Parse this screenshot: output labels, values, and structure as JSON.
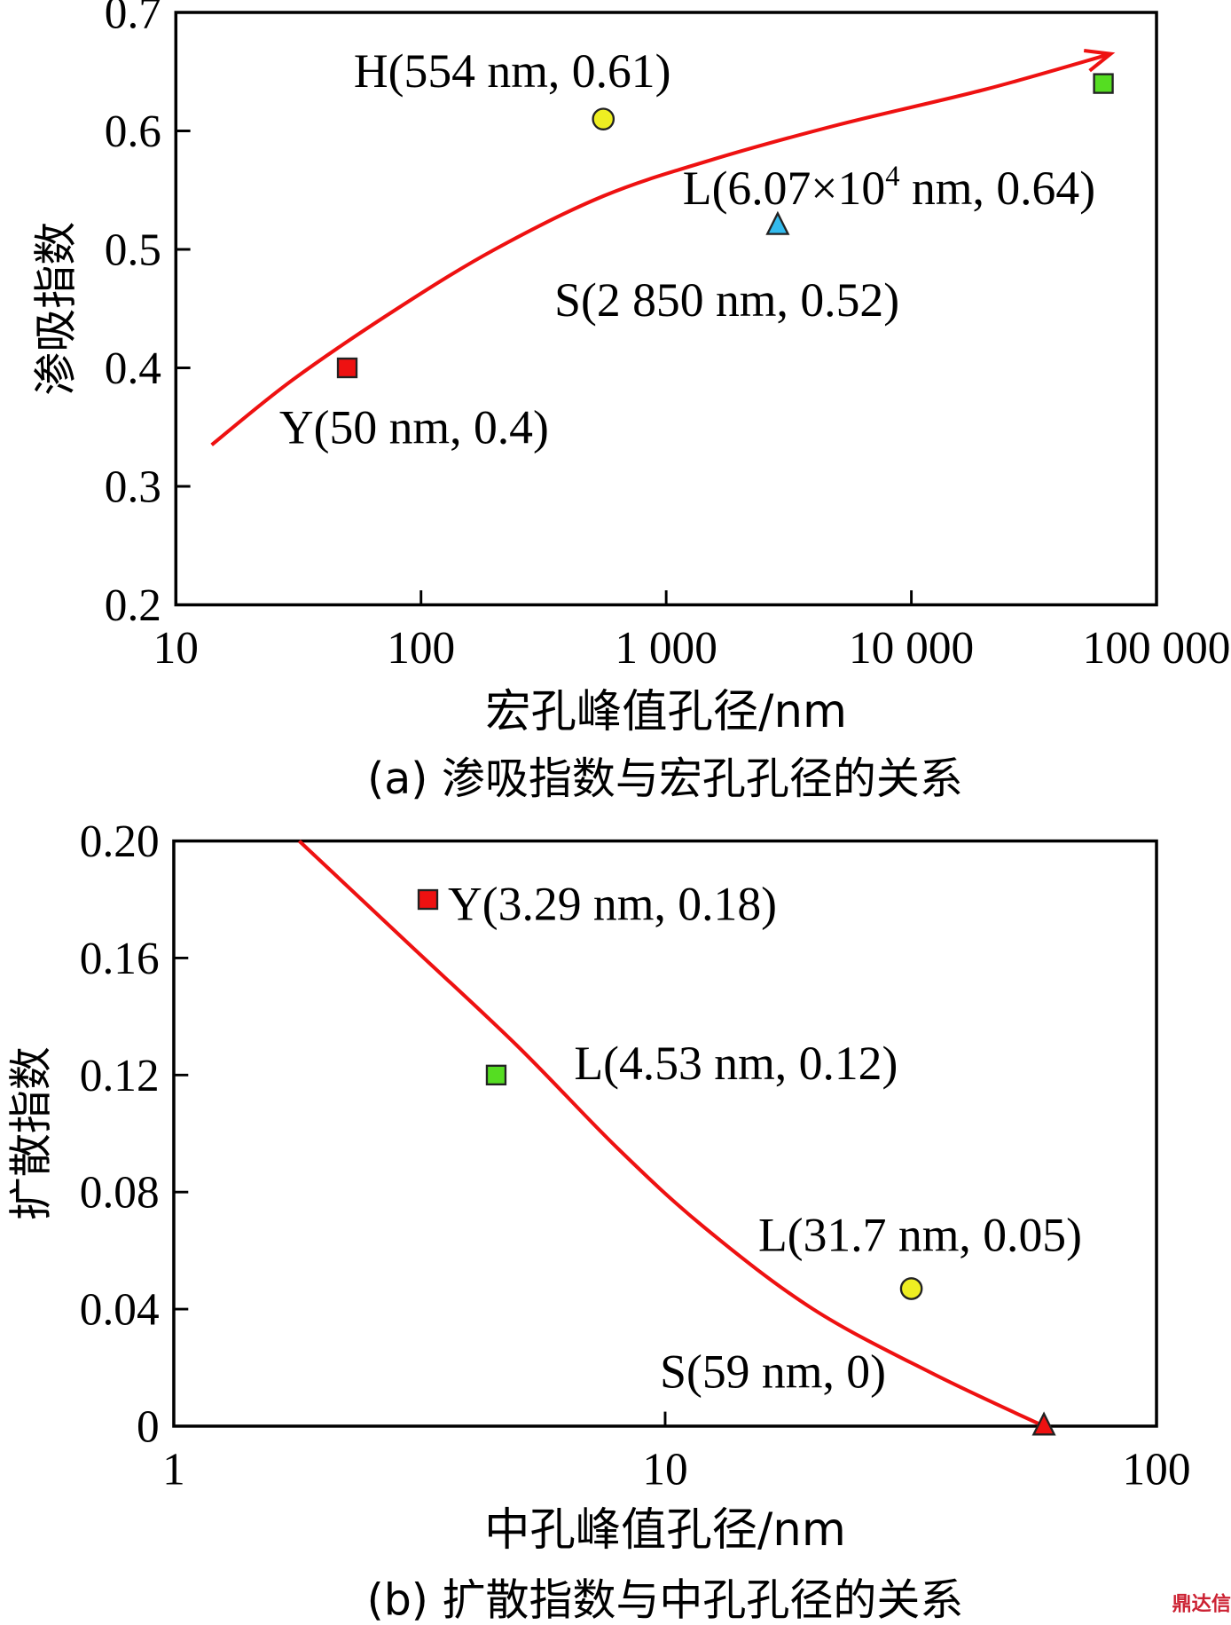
{
  "chart_data": [
    {
      "type": "scatter",
      "id": "a",
      "caption": "(a) 渗吸指数与宏孔孔径的关系",
      "xlabel": "宏孔峰值孔径/nm",
      "ylabel": "渗吸指数",
      "xscale": "log",
      "xlim": [
        10,
        100000
      ],
      "ylim": [
        0.2,
        0.7
      ],
      "xticks": [
        10,
        100,
        1000,
        10000,
        100000
      ],
      "xtick_labels": [
        "10",
        "100",
        "1 000",
        "10 000",
        "100 000"
      ],
      "yticks": [
        0.2,
        0.3,
        0.4,
        0.5,
        0.6,
        0.7
      ],
      "ytick_labels": [
        "0.2",
        "0.3",
        "0.4",
        "0.5",
        "0.6",
        "0.7"
      ],
      "points": [
        {
          "label": "Y(50 nm, 0.4)",
          "x": 50,
          "y": 0.4,
          "marker": "square",
          "color": "#ee1111"
        },
        {
          "label": "H(554 nm, 0.61)",
          "x": 554,
          "y": 0.61,
          "marker": "circle",
          "color": "#eeee22"
        },
        {
          "label": "S(2 850 nm, 0.52)",
          "x": 2850,
          "y": 0.52,
          "marker": "triangle",
          "color": "#33bbee"
        },
        {
          "label_main": "L(6.07×10",
          "label_sup": "4",
          "label_tail": " nm, 0.64)",
          "x": 60700,
          "y": 0.64,
          "marker": "square",
          "color": "#55dd22"
        }
      ],
      "trend": {
        "color": "#ee1111",
        "arrow": true,
        "x": [
          14,
          30,
          80,
          200,
          554,
          1500,
          5000,
          20000,
          65000
        ],
        "y": [
          0.335,
          0.39,
          0.45,
          0.5,
          0.545,
          0.575,
          0.605,
          0.635,
          0.665
        ]
      }
    },
    {
      "type": "scatter",
      "id": "b",
      "caption": "(b) 扩散指数与中孔孔径的关系",
      "xlabel": "中孔峰值孔径/nm",
      "ylabel": "扩散指数",
      "xscale": "log",
      "xlim": [
        1,
        100
      ],
      "ylim": [
        0,
        0.2
      ],
      "xticks": [
        1,
        10,
        100
      ],
      "xtick_labels": [
        "1",
        "10",
        "100"
      ],
      "yticks": [
        0,
        0.04,
        0.08,
        0.12,
        0.16,
        0.2
      ],
      "ytick_labels": [
        "0",
        "0.04",
        "0.08",
        "0.12",
        "0.16",
        "0.20"
      ],
      "points": [
        {
          "label": "Y(3.29 nm, 0.18)",
          "x": 3.29,
          "y": 0.18,
          "marker": "square",
          "color": "#ee1111"
        },
        {
          "label": "L(4.53 nm, 0.12)",
          "x": 4.53,
          "y": 0.12,
          "marker": "square",
          "color": "#55dd22"
        },
        {
          "label": "L(31.7 nm, 0.05)",
          "x": 31.7,
          "y": 0.047,
          "marker": "circle",
          "color": "#eeee22"
        },
        {
          "label": "S(59 nm, 0)",
          "x": 59,
          "y": 0,
          "marker": "triangle",
          "color": "#ee1111"
        }
      ],
      "trend": {
        "color": "#ee1111",
        "arrow": false,
        "x": [
          1.8,
          3,
          5,
          8,
          12,
          20,
          35,
          59
        ],
        "y": [
          0.2,
          0.165,
          0.13,
          0.095,
          0.068,
          0.04,
          0.018,
          0
        ]
      }
    }
  ],
  "watermark": "鼎达信"
}
